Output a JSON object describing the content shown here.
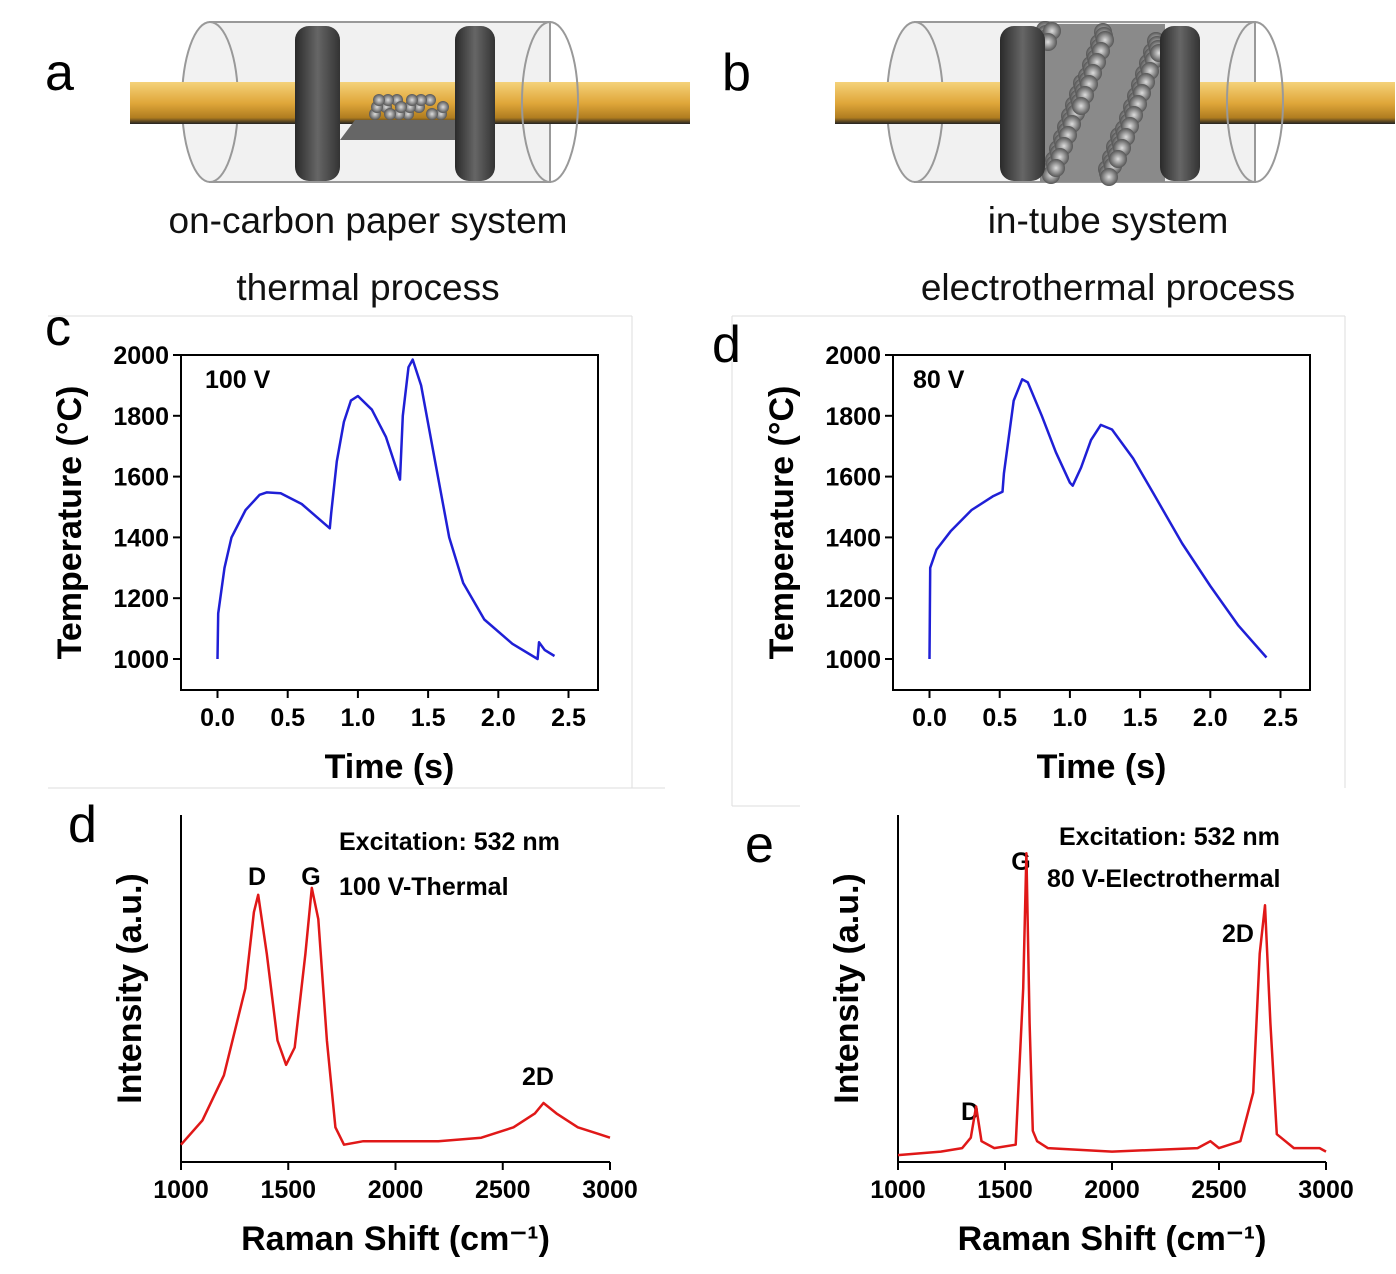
{
  "schematics": [
    {
      "label": "a",
      "lines": [
        "on-carbon paper system",
        "thermal process"
      ]
    },
    {
      "label": "b",
      "lines": [
        "in-tube system",
        "electrothermal process"
      ]
    }
  ],
  "chart_data": [
    {
      "type": "line",
      "panel": "c",
      "annotations": [
        "100 V"
      ],
      "xlabel": "Time (s)",
      "ylabel": "Temperature (°C)",
      "color": "#1f1fd6",
      "xlim": [
        -0.26,
        2.71
      ],
      "ylim": [
        898,
        2000
      ],
      "xticks": [
        {
          "value": 0,
          "label": "0.0"
        },
        {
          "value": 0.5,
          "label": "0.5"
        },
        {
          "value": 1,
          "label": "1.0"
        },
        {
          "value": 1.5,
          "label": "1.5"
        },
        {
          "value": 2,
          "label": "2.0"
        },
        {
          "value": 2.5,
          "label": "2.5"
        }
      ],
      "yticks": [
        1000,
        1200,
        1400,
        1600,
        1800,
        2000
      ],
      "x": [
        0,
        0.005,
        0.05,
        0.1,
        0.2,
        0.3,
        0.35,
        0.45,
        0.6,
        0.8,
        0.81,
        0.85,
        0.9,
        0.95,
        1.0,
        1.1,
        1.2,
        1.3,
        1.32,
        1.36,
        1.39,
        1.45,
        1.55,
        1.65,
        1.75,
        1.9,
        2.1,
        2.28,
        2.29,
        2.33,
        2.4
      ],
      "values": [
        1000,
        1150,
        1300,
        1400,
        1490,
        1540,
        1548,
        1545,
        1510,
        1430,
        1480,
        1650,
        1780,
        1850,
        1865,
        1820,
        1730,
        1590,
        1800,
        1960,
        1985,
        1900,
        1650,
        1400,
        1250,
        1130,
        1050,
        1000,
        1055,
        1030,
        1010
      ]
    },
    {
      "type": "line",
      "panel": "d",
      "annotations": [
        "80 V"
      ],
      "xlabel": "Time (s)",
      "ylabel": "Temperature (°C)",
      "color": "#1f1fd6",
      "xlim": [
        -0.26,
        2.71
      ],
      "ylim": [
        898,
        2000
      ],
      "xticks": [
        {
          "value": 0,
          "label": "0.0"
        },
        {
          "value": 0.5,
          "label": "0.5"
        },
        {
          "value": 1,
          "label": "1.0"
        },
        {
          "value": 1.5,
          "label": "1.5"
        },
        {
          "value": 2,
          "label": "2.0"
        },
        {
          "value": 2.5,
          "label": "2.5"
        }
      ],
      "yticks": [
        1000,
        1200,
        1400,
        1600,
        1800,
        2000
      ],
      "x": [
        0,
        0.005,
        0.05,
        0.15,
        0.3,
        0.45,
        0.52,
        0.53,
        0.6,
        0.66,
        0.7,
        0.8,
        0.9,
        1.0,
        1.02,
        1.08,
        1.15,
        1.22,
        1.3,
        1.45,
        1.6,
        1.8,
        2.0,
        2.2,
        2.4
      ],
      "values": [
        1000,
        1300,
        1360,
        1420,
        1490,
        1535,
        1550,
        1610,
        1850,
        1920,
        1910,
        1800,
        1680,
        1580,
        1570,
        1630,
        1720,
        1770,
        1755,
        1660,
        1540,
        1380,
        1240,
        1110,
        1005
      ]
    },
    {
      "type": "line",
      "panel": "d",
      "annotations": [
        "D",
        "G",
        "2D",
        "Excitation: 532 nm",
        "100 V-Thermal"
      ],
      "xlabel": "Raman Shift (cm⁻¹)",
      "ylabel": "Intensity (a.u.)",
      "color": "#e01818",
      "xlim": [
        1000,
        3000
      ],
      "ylim": [
        0,
        1
      ],
      "xticks": [
        1000,
        1500,
        2000,
        2500,
        3000
      ],
      "x": [
        1000,
        1100,
        1200,
        1300,
        1340,
        1360,
        1400,
        1450,
        1490,
        1530,
        1580,
        1610,
        1640,
        1680,
        1720,
        1760,
        1850,
        2000,
        2200,
        2400,
        2550,
        2650,
        2690,
        2750,
        2850,
        2950,
        3000
      ],
      "values": [
        0.05,
        0.12,
        0.25,
        0.5,
        0.72,
        0.77,
        0.6,
        0.35,
        0.28,
        0.33,
        0.6,
        0.79,
        0.7,
        0.35,
        0.1,
        0.05,
        0.06,
        0.06,
        0.06,
        0.07,
        0.1,
        0.14,
        0.17,
        0.14,
        0.1,
        0.08,
        0.07
      ]
    },
    {
      "type": "line",
      "panel": "e",
      "annotations": [
        "D",
        "G",
        "2D",
        "Excitation: 532 nm",
        "80 V-Electrothermal"
      ],
      "xlabel": "Raman Shift (cm⁻¹)",
      "ylabel": "Intensity (a.u.)",
      "color": "#e01818",
      "xlim": [
        1000,
        3000
      ],
      "ylim": [
        0,
        1
      ],
      "xticks": [
        1000,
        1500,
        2000,
        2500,
        3000
      ],
      "x": [
        1000,
        1200,
        1300,
        1340,
        1365,
        1390,
        1450,
        1550,
        1585,
        1600,
        1615,
        1630,
        1650,
        1700,
        2000,
        2400,
        2460,
        2500,
        2600,
        2660,
        2690,
        2715,
        2740,
        2770,
        2850,
        2970,
        3000
      ],
      "values": [
        0.02,
        0.03,
        0.04,
        0.07,
        0.16,
        0.06,
        0.04,
        0.05,
        0.5,
        0.89,
        0.4,
        0.09,
        0.06,
        0.04,
        0.03,
        0.04,
        0.06,
        0.04,
        0.06,
        0.2,
        0.6,
        0.74,
        0.4,
        0.08,
        0.04,
        0.04,
        0.03
      ]
    }
  ]
}
